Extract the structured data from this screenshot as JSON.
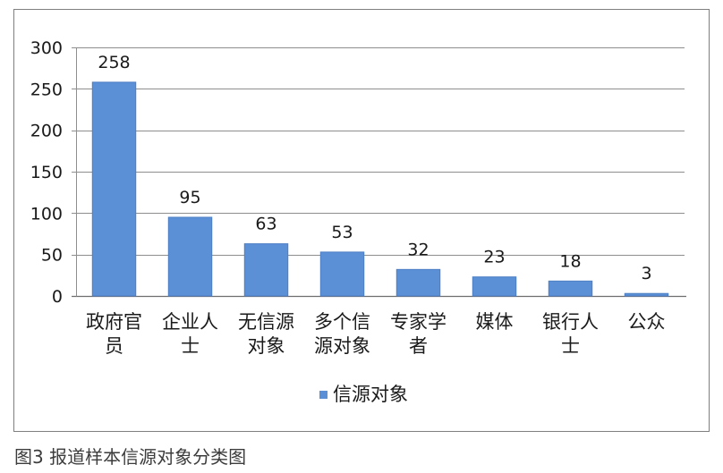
{
  "caption": "图3 报道样本信源对象分类图",
  "chart_data": {
    "type": "bar",
    "categories": [
      "政府官员",
      "企业人士",
      "无信源对象",
      "多个信源对象",
      "专家学者",
      "媒体",
      "银行人士",
      "公众"
    ],
    "series": [
      {
        "name": "信源对象",
        "values": [
          258,
          95,
          63,
          53,
          32,
          23,
          18,
          3
        ],
        "color": "#5b8fd6"
      }
    ],
    "ylim": [
      0,
      300
    ],
    "yticks": [
      0,
      50,
      100,
      150,
      200,
      250,
      300
    ],
    "grid": true,
    "data_labels": true,
    "legend": "bottom"
  }
}
